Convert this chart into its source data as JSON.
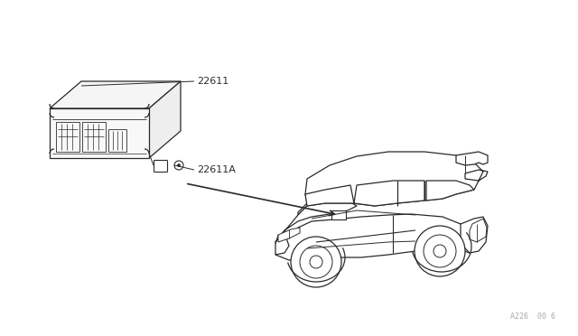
{
  "background_color": "#ffffff",
  "line_color": "#2a2a2a",
  "label_color": "#2a2a2a",
  "watermark_text": "A226  00 6",
  "watermark_color": "#aaaaaa",
  "label_22611": "22611",
  "label_22611A": "22611A",
  "fig_width": 6.4,
  "fig_height": 3.72,
  "dpi": 100
}
